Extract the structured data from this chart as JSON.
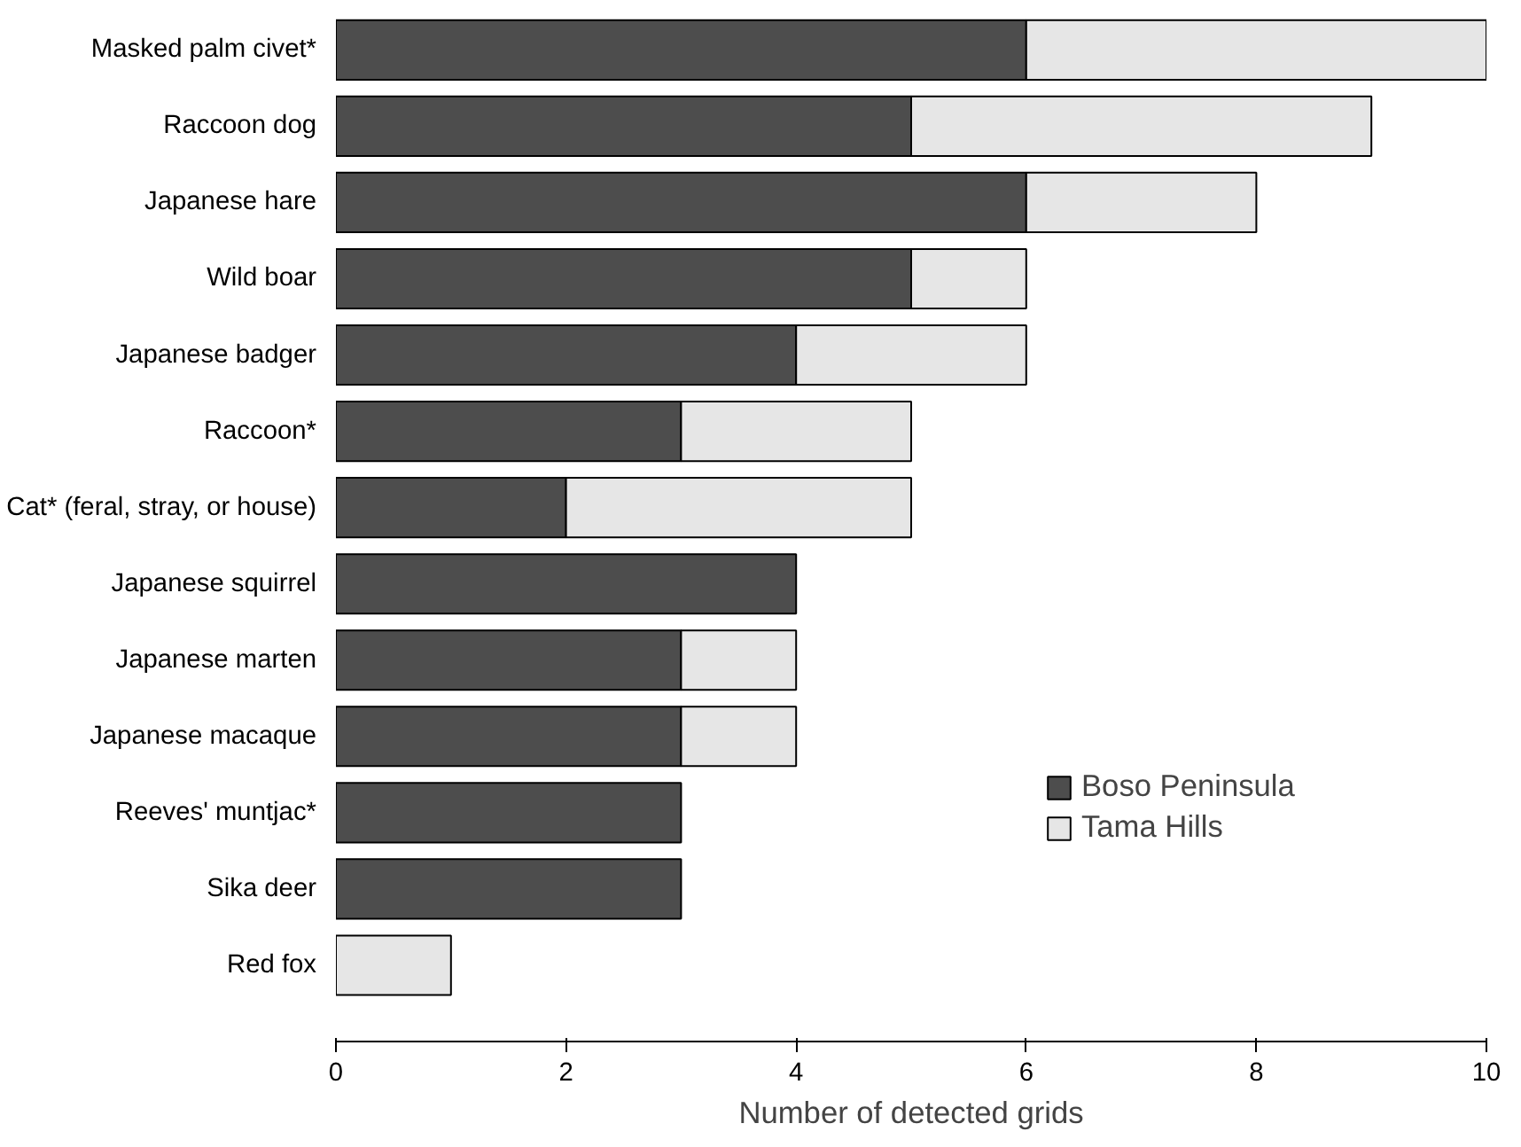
{
  "chart_data": {
    "type": "bar",
    "orientation": "horizontal",
    "stacked": true,
    "xlabel": "Number of detected grids",
    "categories": [
      "Masked palm civet*",
      "Raccoon dog",
      "Japanese hare",
      "Wild boar",
      "Japanese badger",
      "Raccoon*",
      "Cat* (feral, stray, or house)",
      "Japanese squirrel",
      "Japanese marten",
      "Japanese macaque",
      "Reeves' muntjac*",
      "Sika deer",
      "Red fox"
    ],
    "series": [
      {
        "name": "Boso Peninsula",
        "color": "#4d4d4d",
        "values": [
          6,
          5,
          6,
          5,
          4,
          3,
          2,
          4,
          3,
          3,
          3,
          3,
          0
        ]
      },
      {
        "name": "Tama Hills",
        "color": "#e6e6e6",
        "values": [
          4,
          4,
          2,
          1,
          2,
          2,
          3,
          0,
          1,
          1,
          0,
          0,
          1
        ]
      }
    ],
    "xlim": [
      0,
      10
    ],
    "xticks": [
      0,
      2,
      4,
      6,
      8,
      10
    ],
    "legend": "bottom right",
    "grid": false
  }
}
